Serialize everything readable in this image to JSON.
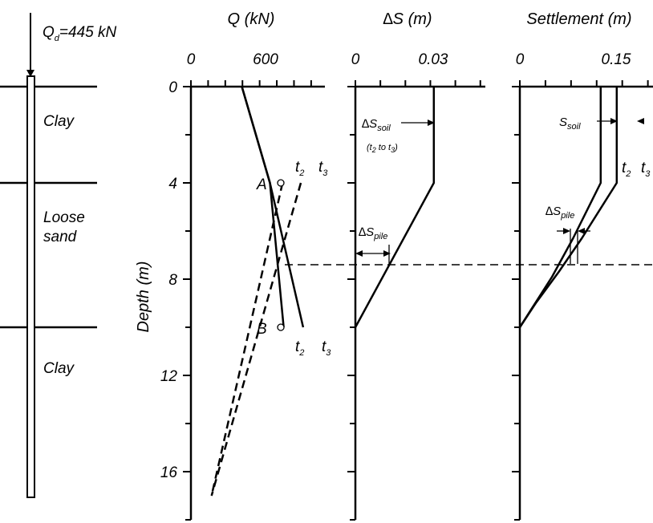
{
  "load_label": {
    "main": "Q",
    "sub": "d",
    "rest": "=445 kN"
  },
  "layers": [
    {
      "lines": [
        "Clay"
      ],
      "top": 0,
      "bottom": 4
    },
    {
      "lines": [
        "Loose",
        "sand"
      ],
      "top": 4,
      "bottom": 10
    },
    {
      "lines": [
        "Clay"
      ],
      "top": 10,
      "bottom": 17
    }
  ],
  "y_axis": {
    "label": "Depth (m)",
    "ticks": [
      0,
      4,
      8,
      12,
      16
    ],
    "range": [
      0,
      18
    ]
  },
  "panels": {
    "q": {
      "title": "Q (kN)",
      "xticks": [
        "0",
        "600"
      ],
      "xlim": [
        0,
        1170
      ]
    },
    "ds": {
      "title": "∆S (m)",
      "xticks": [
        "0",
        "0.03"
      ],
      "xlim": [
        0,
        0.052
      ]
    },
    "s": {
      "title": "Settlement (m)",
      "xticks": [
        "0",
        "0.15"
      ],
      "xlim": [
        0,
        0.26
      ]
    }
  },
  "labels": {
    "A": "A",
    "B": "B",
    "t2": {
      "main": "t",
      "sub": "2"
    },
    "t3": {
      "main": "t",
      "sub": "3"
    },
    "dS_soil": {
      "main": "∆S",
      "sub": "soil"
    },
    "dS_soil_note": {
      "a": "(t",
      "b": "2",
      "c": " to t",
      "d": "3",
      "e": ")"
    },
    "dS_pile": {
      "main": "∆S",
      "sub": "pile"
    },
    "S_soil": {
      "main": "S",
      "sub": "soil"
    }
  },
  "neutral_plane_depth": 7.4,
  "chart_data": [
    {
      "type": "line",
      "title": "Q (kN)",
      "xlabel": "Q (kN)",
      "ylabel": "Depth (m)",
      "xlim": [
        0,
        1170
      ],
      "ylim": [
        18,
        0
      ],
      "series": [
        {
          "name": "t2",
          "style": "solid",
          "points": [
            [
              445,
              0
            ],
            [
              690,
              4
            ],
            [
              810,
              10
            ]
          ]
        },
        {
          "name": "t3",
          "style": "solid",
          "points": [
            [
              445,
              0
            ],
            [
              690,
              4
            ],
            [
              980,
              10
            ]
          ]
        },
        {
          "name": "t2",
          "style": "dashed",
          "points": [
            [
              800,
              4
            ],
            [
              180,
              17
            ]
          ]
        },
        {
          "name": "t3",
          "style": "dashed",
          "points": [
            [
              960,
              4
            ],
            [
              180,
              17
            ]
          ]
        }
      ],
      "annotations": [
        {
          "label": "A",
          "x": 690,
          "y": 4
        },
        {
          "label": "B",
          "x": 690,
          "y": 10
        }
      ]
    },
    {
      "type": "line",
      "title": "∆S (m)",
      "xlabel": "∆S (m)",
      "xlim": [
        0,
        0.052
      ],
      "ylim": [
        18,
        0
      ],
      "series": [
        {
          "name": "∆S",
          "style": "solid",
          "points": [
            [
              0.0314,
              0
            ],
            [
              0.0314,
              4
            ],
            [
              0,
              10
            ]
          ]
        }
      ]
    },
    {
      "type": "line",
      "title": "Settlement (m)",
      "xlabel": "Settlement (m)",
      "xlim": [
        0,
        0.26
      ],
      "ylim": [
        18,
        0
      ],
      "series": [
        {
          "name": "t2",
          "style": "solid",
          "points": [
            [
              0.1579,
              0
            ],
            [
              0.1579,
              4
            ],
            [
              0.104,
              6.3
            ],
            [
              0.063,
              7.9
            ],
            [
              0.027,
              9.1
            ],
            [
              0,
              10
            ]
          ]
        },
        {
          "name": "t3",
          "style": "solid",
          "points": [
            [
              0.1892,
              0
            ],
            [
              0.1892,
              4
            ],
            [
              0.121,
              6.3
            ],
            [
              0.076,
              7.7
            ],
            [
              0.031,
              9.0
            ],
            [
              0,
              10
            ]
          ]
        }
      ]
    }
  ]
}
